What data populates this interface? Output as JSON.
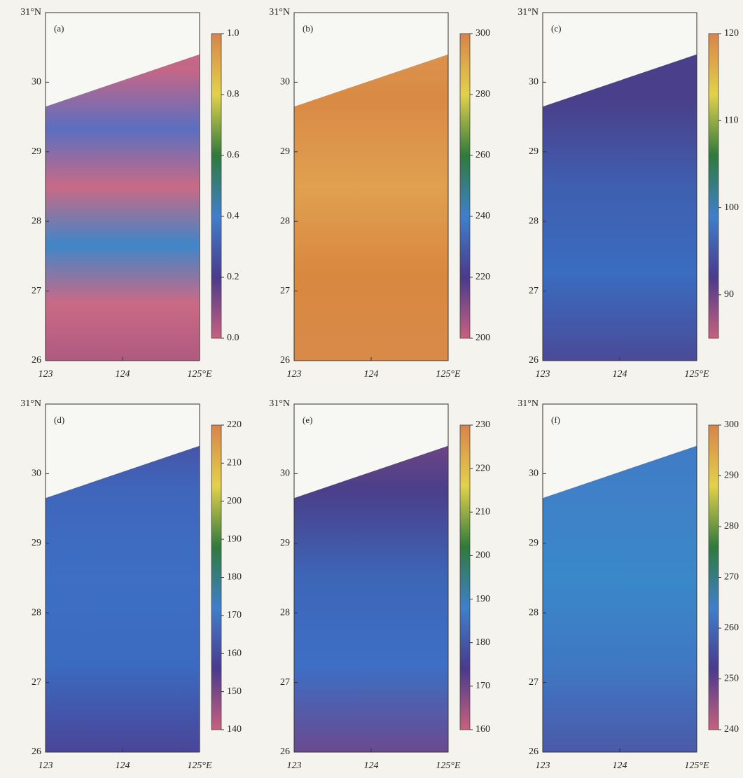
{
  "chart_data": [
    {
      "type": "heatmap",
      "label": "(a)",
      "xlim": [
        123,
        125
      ],
      "xticks": [
        123,
        124,
        {
          "value": 125,
          "label": "125°E"
        }
      ],
      "ylim": [
        26,
        31
      ],
      "yticks": [
        26,
        27,
        28,
        29,
        30,
        {
          "value": 31,
          "label": "31°N"
        }
      ],
      "colorbar": {
        "lim": [
          0,
          1
        ],
        "ticks": [
          {
            "value": 0,
            "label": "0.0"
          },
          0.2,
          0.4,
          0.6,
          0.8,
          {
            "value": 1,
            "label": "1.0"
          }
        ]
      },
      "colormap": [
        "#c8607e",
        "#4a3a8c",
        "#3f7fcc",
        "#2f7a3c",
        "#e2d24a",
        "#d8844a"
      ]
    },
    {
      "type": "heatmap",
      "label": "(b)",
      "xlim": [
        123,
        125
      ],
      "xticks": [
        123,
        124,
        {
          "value": 125,
          "label": "125°E"
        }
      ],
      "ylim": [
        26,
        31
      ],
      "yticks": [
        26,
        27,
        28,
        29,
        30,
        {
          "value": 31,
          "label": "31°N"
        }
      ],
      "colorbar": {
        "lim": [
          200,
          300
        ],
        "ticks": [
          200,
          220,
          240,
          260,
          280,
          300
        ]
      },
      "colormap": [
        "#c8607e",
        "#4a3a8c",
        "#3f7fcc",
        "#2f7a3c",
        "#e2d24a",
        "#d8844a"
      ]
    },
    {
      "type": "heatmap",
      "label": "(c)",
      "xlim": [
        123,
        125
      ],
      "xticks": [
        123,
        124,
        {
          "value": 125,
          "label": "125°E"
        }
      ],
      "ylim": [
        26,
        31
      ],
      "yticks": [
        26,
        27,
        28,
        29,
        30,
        {
          "value": 31,
          "label": "31°N"
        }
      ],
      "colorbar": {
        "lim": [
          85,
          120
        ],
        "ticks": [
          90,
          100,
          110,
          120
        ]
      },
      "colormap": [
        "#c8607e",
        "#4a3a8c",
        "#3f7fcc",
        "#2f7a3c",
        "#e2d24a",
        "#d8844a"
      ]
    },
    {
      "type": "heatmap",
      "label": "(d)",
      "xlim": [
        123,
        125
      ],
      "xticks": [
        123,
        124,
        {
          "value": 125,
          "label": "125°E"
        }
      ],
      "ylim": [
        26,
        31
      ],
      "yticks": [
        26,
        27,
        28,
        29,
        30,
        {
          "value": 31,
          "label": "31°N"
        }
      ],
      "colorbar": {
        "lim": [
          140,
          220
        ],
        "ticks": [
          140,
          150,
          160,
          170,
          180,
          190,
          200,
          210,
          220
        ]
      },
      "colormap": [
        "#c8607e",
        "#4a3a8c",
        "#3f7fcc",
        "#2f7a3c",
        "#e2d24a",
        "#d8844a"
      ]
    },
    {
      "type": "heatmap",
      "label": "(e)",
      "xlim": [
        123,
        125
      ],
      "xticks": [
        123,
        124,
        {
          "value": 125,
          "label": "125°E"
        }
      ],
      "ylim": [
        26,
        31
      ],
      "yticks": [
        26,
        27,
        28,
        29,
        30,
        {
          "value": 31,
          "label": "31°N"
        }
      ],
      "colorbar": {
        "lim": [
          160,
          230
        ],
        "ticks": [
          160,
          170,
          180,
          190,
          200,
          210,
          220,
          230
        ]
      },
      "colormap": [
        "#c8607e",
        "#4a3a8c",
        "#3f7fcc",
        "#2f7a3c",
        "#e2d24a",
        "#d8844a"
      ]
    },
    {
      "type": "heatmap",
      "label": "(f)",
      "xlim": [
        123,
        125
      ],
      "xticks": [
        123,
        124,
        {
          "value": 125,
          "label": "125°E"
        }
      ],
      "ylim": [
        26,
        31
      ],
      "yticks": [
        26,
        27,
        28,
        29,
        30,
        {
          "value": 31,
          "label": "31°N"
        }
      ],
      "colorbar": {
        "lim": [
          240,
          300
        ],
        "ticks": [
          240,
          250,
          260,
          270,
          280,
          290,
          300
        ]
      },
      "colormap": [
        "#c8607e",
        "#4a3a8c",
        "#3f7fcc",
        "#2f7a3c",
        "#e2d24a",
        "#d8844a"
      ]
    }
  ]
}
